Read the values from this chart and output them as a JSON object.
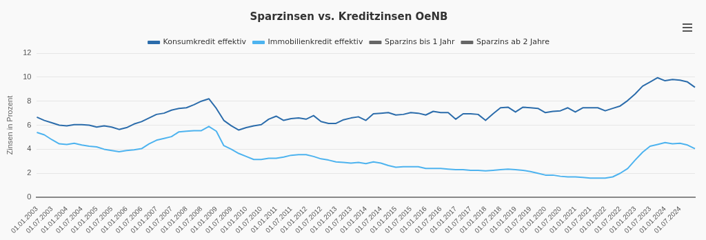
{
  "chart_data": {
    "type": "line",
    "title": "Sparzinsen vs. Kreditzinsen OeNB",
    "ylabel": "Zinsen in Prozent",
    "categories": [
      "01.01.2003",
      null,
      "01.07.2003",
      null,
      "01.01.2004",
      null,
      "01.07.2004",
      null,
      "01.01.2005",
      null,
      "01.07.2005",
      null,
      "01.01.2006",
      null,
      "01.07.2006",
      null,
      "01.01.2007",
      null,
      "01.07.2007",
      null,
      "01.01.2008",
      null,
      "01.07.2008",
      null,
      "01.01.2009",
      null,
      "01.07.2009",
      null,
      "01.01.2010",
      null,
      "01.07.2010",
      null,
      "01.01.2011",
      null,
      "01.07.2011",
      null,
      "01.01.2012",
      null,
      "01.07.2012",
      null,
      "01.01.2013",
      null,
      "01.07.2013",
      null,
      "01.01.2014",
      null,
      "01.07.2014",
      null,
      "01.01.2015",
      null,
      "01.07.2015",
      null,
      "01.01.2016",
      null,
      "01.07.2016",
      null,
      "01.01.2017",
      null,
      "01.07.2017",
      null,
      "01.01.2018",
      null,
      "01.07.2018",
      null,
      "01.01.2019",
      null,
      "01.07.2019",
      null,
      "01.01.2020",
      null,
      "01.07.2020",
      null,
      "01.01.2021",
      null,
      "01.07.2021",
      null,
      "01.01.2022",
      null,
      "01.07.2022",
      null,
      "01.01.2023",
      null,
      "01.07.2023",
      null,
      "01.01.2024",
      null,
      "01.07.2024",
      null,
      null
    ],
    "series": [
      {
        "name": "Konsumkredit effektiv",
        "color": "#2b6cab",
        "values": [
          6.67,
          6.4,
          6.2,
          6.0,
          5.95,
          6.05,
          6.05,
          6.0,
          5.85,
          5.95,
          5.85,
          5.65,
          5.8,
          6.1,
          6.3,
          6.6,
          6.9,
          7.0,
          7.25,
          7.4,
          7.45,
          7.7,
          8.0,
          8.2,
          7.4,
          6.4,
          5.95,
          5.6,
          5.8,
          5.95,
          6.05,
          6.5,
          6.75,
          6.4,
          6.55,
          6.6,
          6.5,
          6.8,
          6.3,
          6.15,
          6.15,
          6.45,
          6.6,
          6.7,
          6.4,
          6.95,
          7.0,
          7.05,
          6.85,
          6.9,
          7.05,
          7.0,
          6.85,
          7.15,
          7.05,
          7.05,
          6.5,
          6.95,
          6.95,
          6.9,
          6.4,
          6.95,
          7.45,
          7.5,
          7.1,
          7.5,
          7.45,
          7.4,
          7.05,
          7.15,
          7.2,
          7.45,
          7.1,
          7.45,
          7.45,
          7.45,
          7.2,
          7.4,
          7.6,
          8.05,
          8.6,
          9.25,
          9.6,
          9.95,
          9.7,
          9.8,
          9.75,
          9.6,
          9.15
        ]
      },
      {
        "name": "Immobilienkredit effektiv",
        "color": "#4db3ef",
        "values": [
          5.4,
          5.2,
          4.8,
          4.45,
          4.4,
          4.5,
          4.35,
          4.25,
          4.2,
          4.0,
          3.9,
          3.8,
          3.9,
          3.95,
          4.05,
          4.45,
          4.75,
          4.9,
          5.05,
          5.45,
          5.5,
          5.55,
          5.55,
          5.9,
          5.5,
          4.3,
          4.0,
          3.65,
          3.4,
          3.15,
          3.15,
          3.25,
          3.25,
          3.35,
          3.5,
          3.55,
          3.55,
          3.4,
          3.2,
          3.1,
          2.95,
          2.9,
          2.85,
          2.9,
          2.8,
          2.95,
          2.85,
          2.65,
          2.5,
          2.55,
          2.55,
          2.55,
          2.4,
          2.4,
          2.4,
          2.35,
          2.3,
          2.3,
          2.25,
          2.25,
          2.2,
          2.25,
          2.3,
          2.35,
          2.3,
          2.25,
          2.15,
          2.0,
          1.85,
          1.85,
          1.75,
          1.7,
          1.7,
          1.65,
          1.6,
          1.6,
          1.6,
          1.7,
          2.0,
          2.4,
          3.1,
          3.75,
          4.25,
          4.4,
          4.55,
          4.45,
          4.5,
          4.35,
          4.05
        ]
      },
      {
        "name": "Sparzins bis 1 Jahr",
        "color": "#666666",
        "values": [
          null,
          null,
          null,
          null,
          null,
          null,
          null,
          null,
          null,
          null,
          null,
          null,
          null,
          null,
          null,
          null,
          null,
          null,
          null,
          null,
          null,
          null,
          null,
          null,
          null,
          null,
          null,
          null,
          null,
          null,
          null,
          null,
          null,
          null,
          null,
          null,
          null,
          null,
          null,
          null,
          null,
          null,
          null,
          null,
          null,
          null,
          null,
          null,
          null,
          null,
          null,
          null,
          null,
          null,
          null,
          null,
          null,
          null,
          null,
          null,
          null,
          null,
          null,
          null,
          null,
          null,
          null,
          null,
          null,
          null,
          null,
          null,
          null,
          null,
          null,
          null,
          null,
          null,
          null,
          null,
          null,
          null,
          null,
          null,
          null,
          null,
          null,
          null,
          null
        ]
      },
      {
        "name": "Sparzins ab 2 Jahre",
        "color": "#666666",
        "values": [
          null,
          null,
          null,
          null,
          null,
          null,
          null,
          null,
          null,
          null,
          null,
          null,
          null,
          null,
          null,
          null,
          null,
          null,
          null,
          null,
          null,
          null,
          null,
          null,
          null,
          null,
          null,
          null,
          null,
          null,
          null,
          null,
          null,
          null,
          null,
          null,
          null,
          null,
          null,
          null,
          null,
          null,
          null,
          null,
          null,
          null,
          null,
          null,
          null,
          null,
          null,
          null,
          null,
          null,
          null,
          null,
          null,
          null,
          null,
          null,
          null,
          null,
          null,
          null,
          null,
          null,
          null,
          null,
          null,
          null,
          null,
          null,
          null,
          null,
          null,
          null,
          null,
          null,
          null,
          null,
          null,
          null,
          null,
          null,
          null,
          null,
          null,
          null,
          null
        ]
      }
    ],
    "ylim": [
      0,
      12
    ],
    "yticks": [
      0,
      2,
      4,
      6,
      8,
      10,
      12
    ],
    "grid": "y",
    "legend": "top"
  }
}
